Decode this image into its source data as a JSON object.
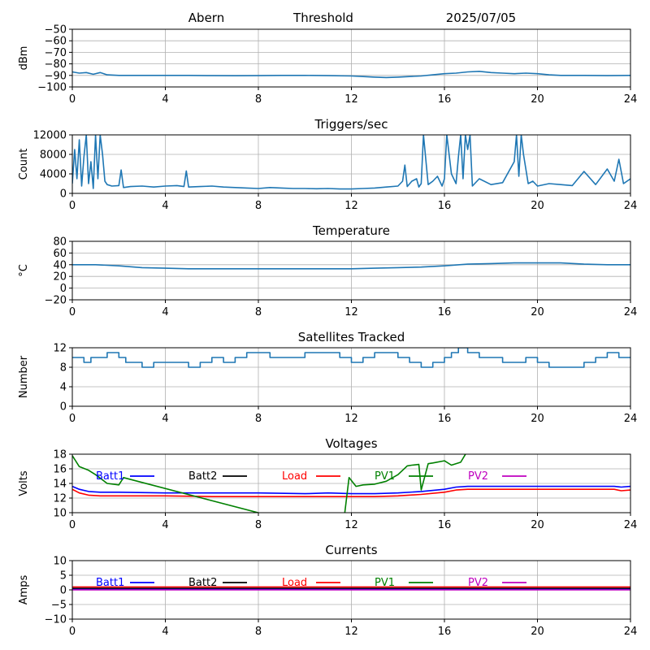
{
  "header": {
    "station": "Abern",
    "mode": "Threshold",
    "date": "2025/07/05"
  },
  "colors": {
    "main_line": "#1f77b4",
    "grid": "#b0b0b0",
    "batt1": "#0000ff",
    "batt2": "#000000",
    "load": "#ff0000",
    "pv1": "#008000",
    "pv2": "#bf00bf"
  },
  "chart_data": [
    {
      "id": "signal",
      "type": "line",
      "title": "",
      "xlabel": "",
      "ylabel": "dBm",
      "xlim": [
        0,
        24
      ],
      "ylim": [
        -100,
        -50
      ],
      "xticks": [
        0,
        4,
        8,
        12,
        16,
        20,
        24
      ],
      "yticks": [
        -100,
        -90,
        -80,
        -70,
        -60,
        -50
      ],
      "grid": true,
      "series": [
        {
          "color_key": "main_line",
          "x": [
            0,
            0.3,
            0.6,
            0.9,
            1.2,
            1.5,
            2,
            3,
            4,
            5,
            6,
            7,
            8,
            9,
            10,
            11,
            12,
            12.5,
            13,
            13.5,
            14,
            14.5,
            15,
            15.5,
            16,
            16.5,
            17,
            17.5,
            18,
            18.5,
            19,
            19.5,
            20,
            20.5,
            21,
            22,
            23,
            24
          ],
          "y": [
            -87,
            -88,
            -87.5,
            -89,
            -87.5,
            -89.5,
            -90,
            -90,
            -90,
            -90,
            -90.2,
            -90.3,
            -90.2,
            -90,
            -90,
            -90.2,
            -90.5,
            -91,
            -91.5,
            -91.8,
            -91.5,
            -91,
            -90.5,
            -89.5,
            -88.5,
            -88,
            -87,
            -86.5,
            -87.5,
            -88,
            -88.5,
            -88,
            -88.5,
            -89.5,
            -90,
            -90,
            -90.2,
            -90
          ]
        }
      ]
    },
    {
      "id": "triggers",
      "type": "line",
      "title": "Triggers/sec",
      "xlabel": "",
      "ylabel": "Count",
      "xlim": [
        0,
        24
      ],
      "ylim": [
        0,
        12000
      ],
      "xticks": [
        0,
        4,
        8,
        12,
        16,
        20,
        24
      ],
      "yticks": [
        0,
        4000,
        8000,
        12000
      ],
      "grid": true,
      "series": [
        {
          "color_key": "main_line",
          "x": [
            0,
            0.1,
            0.2,
            0.3,
            0.4,
            0.5,
            0.6,
            0.7,
            0.8,
            0.9,
            1.0,
            1.1,
            1.2,
            1.3,
            1.4,
            1.5,
            1.7,
            2.0,
            2.1,
            2.2,
            2.5,
            3,
            3.5,
            4,
            4.5,
            4.8,
            4.9,
            5,
            5.5,
            6,
            6.5,
            7,
            7.5,
            8,
            8.5,
            9,
            9.5,
            10,
            10.5,
            11,
            11.5,
            12,
            12.5,
            13,
            13.5,
            14,
            14.2,
            14.3,
            14.4,
            14.6,
            14.8,
            14.9,
            15.0,
            15.1,
            15.3,
            15.5,
            15.7,
            15.9,
            16.0,
            16.1,
            16.3,
            16.5,
            16.6,
            16.7,
            16.8,
            16.9,
            17.0,
            17.1,
            17.2,
            17.3,
            17.5,
            18,
            18.5,
            19,
            19.1,
            19.2,
            19.3,
            19.4,
            19.6,
            19.8,
            20,
            20.5,
            21,
            21.5,
            22,
            22.5,
            23,
            23.3,
            23.5,
            23.7,
            24
          ],
          "y": [
            2000,
            9000,
            3000,
            11000,
            1500,
            7500,
            12000,
            2000,
            6500,
            1000,
            12000,
            3000,
            12000,
            8000,
            2500,
            1800,
            1500,
            1600,
            4800,
            1200,
            1400,
            1500,
            1300,
            1500,
            1600,
            1400,
            4600,
            1300,
            1400,
            1500,
            1300,
            1200,
            1100,
            1000,
            1200,
            1100,
            1000,
            1000,
            950,
            1000,
            900,
            900,
            1000,
            1100,
            1300,
            1500,
            2500,
            5800,
            1400,
            2500,
            3000,
            1300,
            2000,
            12000,
            1800,
            2500,
            3500,
            1500,
            3000,
            12000,
            4000,
            2000,
            7500,
            12000,
            3000,
            12000,
            9000,
            12000,
            1500,
            2000,
            3000,
            1800,
            2200,
            6500,
            12000,
            3500,
            12000,
            8000,
            2000,
            2500,
            1500,
            2000,
            1800,
            1600,
            4500,
            1800,
            5000,
            2500,
            7000,
            2000,
            3000
          ]
        }
      ]
    },
    {
      "id": "temperature",
      "type": "line",
      "title": "Temperature",
      "xlabel": "",
      "ylabel": "°C",
      "xlim": [
        0,
        24
      ],
      "ylim": [
        -20,
        80
      ],
      "xticks": [
        0,
        4,
        8,
        12,
        16,
        20,
        24
      ],
      "yticks": [
        -20,
        0,
        20,
        40,
        60,
        80
      ],
      "grid": true,
      "series": [
        {
          "color_key": "main_line",
          "x": [
            0,
            1,
            2,
            3,
            4,
            5,
            6,
            8,
            10,
            12,
            13,
            14,
            15,
            16,
            17,
            18,
            19,
            20,
            21,
            22,
            23,
            24
          ],
          "y": [
            40,
            40,
            38,
            35,
            34,
            33,
            33,
            33,
            33,
            33,
            34,
            35,
            36,
            38,
            41,
            42,
            43,
            43,
            43,
            41,
            40,
            40
          ]
        }
      ]
    },
    {
      "id": "satellites",
      "type": "line",
      "title": "Satellites Tracked",
      "xlabel": "",
      "ylabel": "Number",
      "xlim": [
        0,
        24
      ],
      "ylim": [
        0,
        12
      ],
      "xticks": [
        0,
        4,
        8,
        12,
        16,
        20,
        24
      ],
      "yticks": [
        0,
        4,
        8,
        12
      ],
      "grid": true,
      "series": [
        {
          "color_key": "main_line",
          "step": true,
          "x": [
            0,
            0.5,
            0.8,
            1.5,
            2,
            2.3,
            3,
            3.5,
            4,
            4.3,
            4.8,
            5,
            5.5,
            6,
            6.5,
            7,
            7.5,
            8,
            8.5,
            9,
            9.5,
            10,
            10.5,
            11,
            11.5,
            12,
            12.5,
            13,
            13.5,
            14,
            14.5,
            15,
            15.5,
            16,
            16.3,
            16.6,
            17,
            17.5,
            18,
            18.5,
            19,
            19.5,
            20,
            20.5,
            21,
            21.5,
            22,
            22.5,
            23,
            23.5,
            24
          ],
          "y": [
            10,
            9,
            10,
            11,
            10,
            9,
            8,
            9,
            9,
            9,
            9,
            8,
            9,
            10,
            9,
            10,
            11,
            11,
            10,
            10,
            10,
            11,
            11,
            11,
            10,
            9,
            10,
            11,
            11,
            10,
            9,
            8,
            9,
            10,
            11,
            12,
            11,
            10,
            10,
            9,
            9,
            10,
            9,
            8,
            8,
            8,
            9,
            10,
            11,
            10,
            10
          ]
        }
      ]
    },
    {
      "id": "voltages",
      "type": "line",
      "title": "Voltages",
      "xlabel": "",
      "ylabel": "Volts",
      "xlim": [
        0,
        24
      ],
      "ylim": [
        10,
        18
      ],
      "xticks": [
        0,
        4,
        8,
        12,
        16,
        20,
        24
      ],
      "yticks": [
        10,
        12,
        14,
        16,
        18
      ],
      "grid": true,
      "legend": [
        "Batt1",
        "Batt2",
        "Load",
        "PV1",
        "PV2"
      ],
      "series": [
        {
          "name": "Batt1",
          "color_key": "batt1",
          "x": [
            0,
            0.3,
            0.7,
            1.2,
            2,
            4,
            6,
            8,
            10,
            11,
            12,
            13,
            14,
            15,
            16,
            16.5,
            17,
            18,
            20,
            22,
            23.3,
            23.6,
            24
          ],
          "y": [
            13.6,
            13.2,
            12.9,
            12.8,
            12.8,
            12.7,
            12.7,
            12.7,
            12.6,
            12.7,
            12.6,
            12.6,
            12.7,
            12.9,
            13.2,
            13.5,
            13.6,
            13.6,
            13.6,
            13.6,
            13.6,
            13.5,
            13.6
          ]
        },
        {
          "name": "Load",
          "color_key": "load",
          "x": [
            0,
            0.3,
            0.7,
            1.2,
            2,
            4,
            6,
            8,
            10,
            11,
            12,
            13,
            14,
            15,
            16,
            16.5,
            17,
            18,
            20,
            22,
            23.3,
            23.6,
            24
          ],
          "y": [
            13.2,
            12.7,
            12.4,
            12.3,
            12.3,
            12.3,
            12.2,
            12.2,
            12.2,
            12.2,
            12.2,
            12.2,
            12.3,
            12.5,
            12.8,
            13.1,
            13.2,
            13.2,
            13.2,
            13.2,
            13.2,
            13.0,
            13.1
          ]
        },
        {
          "name": "PV1",
          "color_key": "pv1",
          "x": [
            0,
            0.3,
            0.7,
            1.0,
            1.5,
            2.0,
            2.2,
            11.6,
            11.9,
            12.2,
            12.5,
            13.0,
            13.5,
            14.0,
            14.4,
            14.6,
            14.9,
            15.0,
            15.3,
            15.5,
            16.0,
            16.3,
            16.7,
            17.0,
            24
          ],
          "y": [
            17.8,
            16.3,
            15.8,
            15.2,
            14.0,
            13.8,
            14.8,
            7.0,
            14.8,
            13.6,
            13.8,
            13.9,
            14.3,
            15.2,
            16.4,
            16.5,
            16.6,
            13.1,
            16.7,
            16.8,
            17.1,
            16.5,
            16.9,
            18.5,
            18.5
          ]
        }
      ]
    },
    {
      "id": "currents",
      "type": "line",
      "title": "Currents",
      "xlabel": "",
      "ylabel": "Amps",
      "xlim": [
        0,
        24
      ],
      "ylim": [
        -10,
        10
      ],
      "xticks": [
        0,
        4,
        8,
        12,
        16,
        20,
        24
      ],
      "yticks": [
        -10,
        -5,
        0,
        5,
        10
      ],
      "grid": true,
      "legend": [
        "Batt1",
        "Batt2",
        "Load",
        "PV1",
        "PV2"
      ],
      "series": [
        {
          "name": "Load",
          "color_key": "load",
          "x": [
            0,
            2,
            4,
            6,
            8,
            10,
            12,
            14,
            16,
            18,
            20,
            22,
            24
          ],
          "y": [
            1.0,
            1.0,
            1.0,
            1.0,
            1.0,
            1.0,
            1.0,
            1.0,
            1.0,
            1.0,
            1.0,
            1.0,
            1.0
          ]
        },
        {
          "name": "Batt2",
          "color_key": "batt2",
          "x": [
            0,
            2,
            4,
            6,
            8,
            10,
            12,
            14,
            16,
            18,
            20,
            22,
            24
          ],
          "y": [
            0.5,
            0.5,
            0.5,
            0.5,
            0.5,
            0.5,
            0.5,
            0.5,
            0.5,
            0.5,
            0.5,
            0.5,
            0.5
          ]
        },
        {
          "name": "Batt1",
          "color_key": "batt1",
          "x": [
            0,
            2,
            4,
            6,
            8,
            10,
            12,
            14,
            16,
            18,
            20,
            22,
            24
          ],
          "y": [
            0.1,
            0.1,
            0.1,
            0.1,
            0.1,
            0.1,
            0.1,
            0.1,
            0.1,
            0.1,
            0.1,
            0.1,
            0.1
          ]
        },
        {
          "name": "PV2",
          "color_key": "pv2",
          "x": [
            0,
            2,
            4,
            6,
            8,
            10,
            12,
            14,
            16,
            18,
            20,
            22,
            24
          ],
          "y": [
            0.0,
            0.0,
            0.0,
            0.0,
            0.0,
            0.0,
            0.0,
            0.0,
            0.0,
            0.0,
            0.0,
            0.0,
            0.0
          ]
        }
      ]
    }
  ]
}
